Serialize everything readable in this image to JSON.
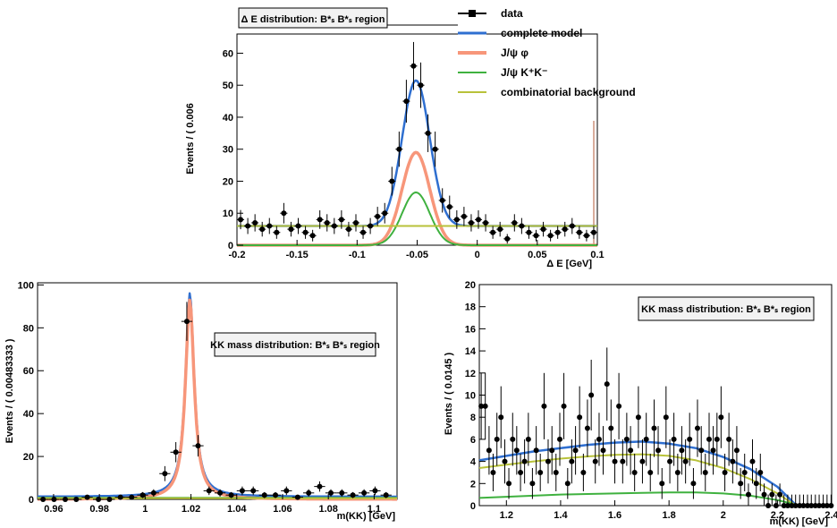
{
  "colors": {
    "data": "#000000",
    "complete_model": "#2f6fd0",
    "jpsi_phi": "#f7967a",
    "jpsi_kk": "#3fb13f",
    "combinatorial": "#b8c23a",
    "ghost_line": "#b35b3a"
  },
  "legend": {
    "items": [
      {
        "key": "data",
        "label": "data",
        "style": "marker"
      },
      {
        "key": "complete_model",
        "label": "complete model",
        "style": "line"
      },
      {
        "key": "jpsi_phi",
        "label": "J/ψ φ",
        "style": "line"
      },
      {
        "key": "jpsi_kk",
        "label": "J/ψ K⁺K⁻",
        "style": "line"
      },
      {
        "key": "combinatorial",
        "label": "combinatorial background",
        "style": "line"
      }
    ]
  },
  "chart_data": [
    {
      "type": "scatter",
      "title": "Δ E distribution: B*ₛ B*ₛ region",
      "xlabel": "Δ E [GeV]",
      "ylabel": "Events / ( 0.006",
      "xlim": [
        -0.2,
        0.1
      ],
      "ylim": [
        0,
        66
      ],
      "xticks": [
        -0.2,
        -0.15,
        -0.1,
        -0.05,
        0,
        0.05,
        0.1
      ],
      "xtick_labels": [
        "-0.2",
        "-0.15",
        "-0.1",
        "-0.05",
        "0",
        "0.05",
        "0.1"
      ],
      "yticks": [
        0,
        10,
        20,
        30,
        40,
        50,
        60
      ],
      "ytick_labels": [
        "0",
        "10",
        "20",
        "30",
        "40",
        "50",
        "60"
      ],
      "points": {
        "x": [
          -0.197,
          -0.191,
          -0.185,
          -0.179,
          -0.173,
          -0.167,
          -0.161,
          -0.155,
          -0.149,
          -0.143,
          -0.137,
          -0.131,
          -0.125,
          -0.119,
          -0.113,
          -0.107,
          -0.101,
          -0.095,
          -0.089,
          -0.083,
          -0.077,
          -0.071,
          -0.065,
          -0.059,
          -0.053,
          -0.047,
          -0.041,
          -0.035,
          -0.029,
          -0.023,
          -0.017,
          -0.011,
          -0.005,
          0.001,
          0.007,
          0.013,
          0.019,
          0.025,
          0.031,
          0.037,
          0.043,
          0.049,
          0.055,
          0.061,
          0.067,
          0.073,
          0.079,
          0.085,
          0.091,
          0.097
        ],
        "y": [
          8,
          6,
          7,
          5,
          6,
          4,
          10,
          5,
          6,
          4,
          3,
          8,
          7,
          6,
          8,
          5,
          7,
          4,
          6,
          9,
          10,
          20,
          30,
          45,
          56,
          50,
          35,
          30,
          14,
          12,
          8,
          9,
          7,
          8,
          7,
          4,
          5,
          2,
          7,
          6,
          4,
          3,
          5,
          3,
          4,
          5,
          6,
          4,
          3,
          4
        ],
        "err": [
          3,
          2.5,
          2.7,
          2.3,
          2.5,
          2,
          3.2,
          2.3,
          2.5,
          2,
          1.8,
          2.9,
          2.7,
          2.5,
          2.9,
          2.3,
          2.7,
          2,
          2.5,
          3,
          3.2,
          4.5,
          5.5,
          6.7,
          7.5,
          7.1,
          5.9,
          5.5,
          3.8,
          3.5,
          2.9,
          3,
          2.7,
          2.9,
          2.7,
          2,
          2.3,
          1.5,
          2.7,
          2.5,
          2,
          1.8,
          2.3,
          1.8,
          2,
          2.3,
          2.5,
          2,
          1.8,
          2
        ]
      },
      "curves": [
        {
          "key": "complete_model",
          "model": "gaussian",
          "mean": -0.051,
          "sigma": 0.0115,
          "amplitude": 45.5,
          "baseline": 6.0
        },
        {
          "key": "jpsi_phi",
          "model": "gaussian",
          "mean": -0.051,
          "sigma": 0.0115,
          "amplitude": 29,
          "baseline": 0
        },
        {
          "key": "jpsi_kk",
          "model": "gaussian",
          "mean": -0.051,
          "sigma": 0.0115,
          "amplitude": 16.5,
          "baseline": 0
        },
        {
          "key": "combinatorial",
          "model": "flat",
          "value": 6.0
        }
      ]
    },
    {
      "type": "scatter",
      "title": "KK mass distribution: B*ₛ B*ₛ region",
      "xlabel": "m(KK) [GeV]",
      "ylabel": "Events / ( 0.00483333 )",
      "xlim": [
        0.953,
        1.11
      ],
      "ylim": [
        0,
        101
      ],
      "xticks": [
        0.96,
        0.98,
        1.0,
        1.02,
        1.04,
        1.06,
        1.08,
        1.1
      ],
      "xtick_labels": [
        "0.96",
        "0.98",
        "1",
        "1.02",
        "1.04",
        "1.06",
        "1.08",
        "1.1"
      ],
      "yticks": [
        0,
        20,
        40,
        60,
        80,
        100
      ],
      "ytick_labels": [
        "0",
        "20",
        "40",
        "60",
        "80",
        "100"
      ],
      "points": {
        "x": [
          0.9554,
          0.9602,
          0.9651,
          0.9699,
          0.9747,
          0.9796,
          0.9844,
          0.9892,
          0.9941,
          0.9989,
          1.0037,
          1.0086,
          1.0134,
          1.0182,
          1.0231,
          1.0279,
          1.0327,
          1.0376,
          1.0424,
          1.0472,
          1.0521,
          1.0569,
          1.0617,
          1.0666,
          1.0714,
          1.0762,
          1.0811,
          1.0859,
          1.0907,
          1.0956,
          1.1004,
          1.1052,
          1.1101
        ],
        "y": [
          0,
          0,
          0,
          0,
          1,
          0,
          0,
          1,
          1,
          2,
          3,
          12,
          22,
          83,
          25,
          4,
          3,
          2,
          4,
          4,
          2,
          2,
          4,
          1,
          3,
          6,
          3,
          3,
          2,
          3,
          4,
          2,
          2
        ],
        "err": [
          0,
          0,
          0,
          0,
          1,
          0,
          0,
          1,
          1,
          1.4,
          1.7,
          3.5,
          4.7,
          9.1,
          5,
          2,
          1.7,
          1.4,
          2,
          2,
          1.4,
          1.4,
          2,
          1,
          1.7,
          2.4,
          1.7,
          1.7,
          1.4,
          1.7,
          2,
          1.4,
          1.4
        ]
      },
      "curves": [
        {
          "key": "complete_model",
          "model": "lorentzian",
          "mean": 1.0195,
          "gamma": 0.0023,
          "amplitude": 95,
          "baseline": 1.2
        },
        {
          "key": "jpsi_phi",
          "model": "lorentzian",
          "mean": 1.0195,
          "gamma": 0.0023,
          "amplitude": 93,
          "baseline": 0
        },
        {
          "key": "jpsi_kk",
          "model": "flat",
          "value": 0.7
        },
        {
          "key": "combinatorial",
          "model": "flat",
          "value": 0.5
        }
      ]
    },
    {
      "type": "scatter",
      "title": "KK mass distribution: B*ₛ B*ₛ region",
      "xlabel": "m(KK) [GeV]",
      "ylabel": "Events / ( 0.0145 )",
      "xlim": [
        1.1,
        2.4
      ],
      "ylim": [
        0,
        20
      ],
      "xticks": [
        1.2,
        1.4,
        1.6,
        1.8,
        2.0,
        2.2,
        2.4
      ],
      "xtick_labels": [
        "1.2",
        "1.4",
        "1.6",
        "1.8",
        "2",
        "2.2",
        "2.4"
      ],
      "yticks": [
        0,
        2,
        4,
        6,
        8,
        10,
        12,
        14,
        16,
        18,
        20
      ],
      "ytick_labels": [
        "0",
        "2",
        "4",
        "6",
        "8",
        "10",
        "12",
        "14",
        "16",
        "18",
        "20"
      ],
      "points": {
        "x": [
          1.107,
          1.122,
          1.136,
          1.151,
          1.165,
          1.18,
          1.194,
          1.209,
          1.223,
          1.238,
          1.252,
          1.267,
          1.281,
          1.296,
          1.31,
          1.325,
          1.339,
          1.354,
          1.368,
          1.383,
          1.397,
          1.412,
          1.426,
          1.441,
          1.455,
          1.47,
          1.484,
          1.499,
          1.513,
          1.528,
          1.542,
          1.557,
          1.571,
          1.586,
          1.6,
          1.615,
          1.629,
          1.644,
          1.658,
          1.673,
          1.687,
          1.702,
          1.716,
          1.731,
          1.745,
          1.76,
          1.774,
          1.789,
          1.803,
          1.818,
          1.832,
          1.847,
          1.861,
          1.876,
          1.89,
          1.905,
          1.919,
          1.934,
          1.948,
          1.963,
          1.977,
          1.992,
          2.006,
          2.021,
          2.035,
          2.05,
          2.064,
          2.079,
          2.093,
          2.108,
          2.122,
          2.137,
          2.151,
          2.166,
          2.18,
          2.195,
          2.209,
          2.224,
          2.238,
          2.253,
          2.267,
          2.282,
          2.296,
          2.311,
          2.325,
          2.34,
          2.354,
          2.369,
          2.383,
          2.398
        ],
        "y": [
          9,
          9,
          5,
          3,
          6,
          8,
          4,
          2,
          6,
          5,
          3,
          4,
          6,
          2,
          5,
          3,
          9,
          4,
          5,
          3,
          6,
          9,
          2,
          4,
          5,
          8,
          3,
          7,
          10,
          4,
          6,
          5,
          11,
          7,
          4,
          9,
          4,
          6,
          5,
          3,
          8,
          4,
          6,
          3,
          7,
          5,
          2,
          8,
          4,
          6,
          3,
          5,
          4,
          6,
          2,
          7,
          5,
          3,
          6,
          5,
          6,
          8,
          3,
          6,
          4,
          5,
          2,
          3,
          1,
          4,
          2,
          3,
          1,
          0,
          1,
          0,
          1,
          0,
          0,
          0,
          0,
          0,
          0,
          0,
          0,
          0,
          0,
          0,
          0,
          0
        ],
        "err": [
          3,
          3,
          2.2,
          1.7,
          2.4,
          2.8,
          2,
          1.4,
          2.4,
          2.2,
          1.7,
          2,
          2.4,
          1.4,
          2.2,
          1.7,
          3,
          2,
          2.2,
          1.7,
          2.4,
          3,
          1.4,
          2,
          2.2,
          2.8,
          1.7,
          2.6,
          3.2,
          2,
          2.4,
          2.2,
          3.3,
          2.6,
          2,
          3,
          2,
          2.4,
          2.2,
          1.7,
          2.8,
          2,
          2.4,
          1.7,
          2.6,
          2.2,
          1.4,
          2.8,
          2,
          2.4,
          1.7,
          2.2,
          2,
          2.4,
          1.4,
          2.6,
          2.2,
          1.7,
          2.4,
          2.2,
          2.4,
          2.8,
          1.7,
          2.4,
          2,
          2.2,
          1.4,
          1.7,
          1,
          2,
          1.4,
          1.7,
          1,
          1,
          1,
          1,
          1,
          1,
          1,
          1,
          1,
          1,
          1,
          1,
          1,
          1,
          1,
          1,
          1,
          1
        ]
      },
      "curves": [
        {
          "key": "complete_model",
          "points": [
            [
              1.1,
              4.1
            ],
            [
              1.2,
              4.5
            ],
            [
              1.3,
              4.9
            ],
            [
              1.4,
              5.2
            ],
            [
              1.5,
              5.5
            ],
            [
              1.6,
              5.7
            ],
            [
              1.7,
              5.8
            ],
            [
              1.8,
              5.6
            ],
            [
              1.9,
              5.2
            ],
            [
              2.0,
              4.4
            ],
            [
              2.1,
              3.3
            ],
            [
              2.2,
              1.7
            ],
            [
              2.25,
              0.5
            ],
            [
              2.27,
              0
            ],
            [
              2.4,
              0
            ]
          ]
        },
        {
          "key": "combinatorial",
          "points": [
            [
              1.1,
              3.4
            ],
            [
              1.2,
              3.7
            ],
            [
              1.3,
              4.0
            ],
            [
              1.4,
              4.25
            ],
            [
              1.5,
              4.45
            ],
            [
              1.6,
              4.6
            ],
            [
              1.7,
              4.65
            ],
            [
              1.8,
              4.5
            ],
            [
              1.9,
              4.1
            ],
            [
              2.0,
              3.4
            ],
            [
              2.1,
              2.4
            ],
            [
              2.2,
              1.1
            ],
            [
              2.25,
              0.3
            ],
            [
              2.27,
              0
            ],
            [
              2.4,
              0
            ]
          ]
        },
        {
          "key": "jpsi_kk",
          "points": [
            [
              1.1,
              0.7
            ],
            [
              1.2,
              0.8
            ],
            [
              1.3,
              0.9
            ],
            [
              1.4,
              1.0
            ],
            [
              1.5,
              1.05
            ],
            [
              1.6,
              1.1
            ],
            [
              1.7,
              1.15
            ],
            [
              1.8,
              1.2
            ],
            [
              1.9,
              1.2
            ],
            [
              2.0,
              1.1
            ],
            [
              2.1,
              0.9
            ],
            [
              2.2,
              0.5
            ],
            [
              2.25,
              0.2
            ],
            [
              2.27,
              0
            ],
            [
              2.4,
              0
            ]
          ]
        }
      ]
    }
  ]
}
